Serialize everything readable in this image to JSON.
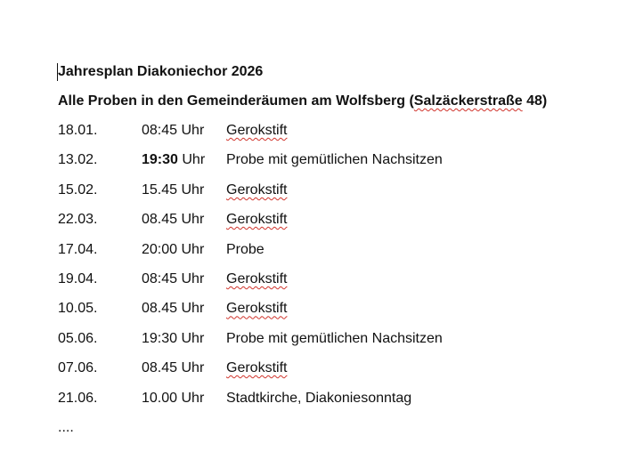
{
  "document": {
    "title": "Jahresplan Diakoniechor 2026",
    "subtitle_prefix": "Alle Proben in den Gemeinderäumen am Wolfsberg (",
    "subtitle_street": "Salzäckerstraße",
    "subtitle_suffix": " 48)",
    "rows": [
      {
        "date": "18.01.",
        "time": "08:45",
        "unit": " Uhr",
        "bold": false,
        "place": "Gerokstift",
        "spell": true
      },
      {
        "date": "13.02.",
        "time": "19:30",
        "unit": " Uhr",
        "bold": true,
        "place": "Probe mit gemütlichen Nachsitzen",
        "spell": false
      },
      {
        "date": "15.02.",
        "time": "15.45",
        "unit": " Uhr",
        "bold": false,
        "place": "Gerokstift",
        "spell": true
      },
      {
        "date": "22.03.",
        "time": "08.45",
        "unit": " Uhr",
        "bold": false,
        "place": "Gerokstift",
        "spell": true
      },
      {
        "date": "17.04.",
        "time": "20:00",
        "unit": " Uhr",
        "bold": false,
        "place": "Probe",
        "spell": false
      },
      {
        "date": "19.04.",
        "time": "08:45",
        "unit": " Uhr",
        "bold": false,
        "place": "Gerokstift",
        "spell": true
      },
      {
        "date": "10.05.",
        "time": "08.45",
        "unit": " Uhr",
        "bold": false,
        "place": "Gerokstift",
        "spell": true
      },
      {
        "date": "05.06.",
        "time": "19:30",
        "unit": " Uhr",
        "bold": false,
        "place": "Probe mit gemütlichen Nachsitzen",
        "spell": false
      },
      {
        "date": "07.06.",
        "time": "08.45",
        "unit": " Uhr",
        "bold": false,
        "place": "Gerokstift",
        "spell": true
      },
      {
        "date": "21.06.",
        "time": "10.00",
        "unit": " Uhr",
        "bold": false,
        "place": "Stadtkirche, Diakoniesonntag",
        "spell": false
      }
    ],
    "ellipsis": "...."
  },
  "colors": {
    "text": "#111111",
    "spellcheck": "#d0342c"
  }
}
